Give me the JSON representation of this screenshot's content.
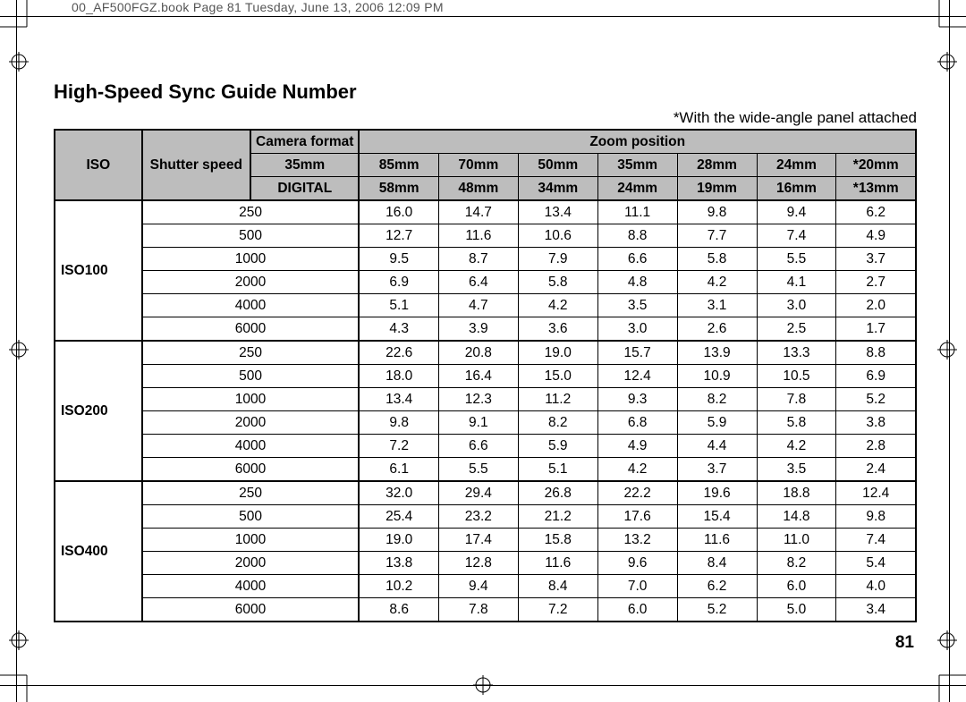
{
  "meta": {
    "book_header": "00_AF500FGZ.book  Page 81  Tuesday, June 13, 2006  12:09 PM",
    "page_number": "81"
  },
  "title": "High-Speed Sync Guide Number",
  "note": "*With the wide-angle panel attached",
  "table": {
    "headers": {
      "iso": "ISO",
      "shutter": "Shutter speed",
      "camera_format": "Camera format",
      "zoom": "Zoom position",
      "row35": {
        "label": "35mm",
        "cols": [
          "85mm",
          "70mm",
          "50mm",
          "35mm",
          "28mm",
          "24mm",
          "*20mm"
        ]
      },
      "rowDig": {
        "label": "DIGITAL",
        "cols": [
          "58mm",
          "48mm",
          "34mm",
          "24mm",
          "19mm",
          "16mm",
          "*13mm"
        ]
      }
    },
    "background_header": "#bdbdbd",
    "border_color": "#000000",
    "groups": [
      {
        "iso": "ISO100",
        "rows": [
          {
            "shutter": "250",
            "vals": [
              "16.0",
              "14.7",
              "13.4",
              "11.1",
              "9.8",
              "9.4",
              "6.2"
            ]
          },
          {
            "shutter": "500",
            "vals": [
              "12.7",
              "11.6",
              "10.6",
              "8.8",
              "7.7",
              "7.4",
              "4.9"
            ]
          },
          {
            "shutter": "1000",
            "vals": [
              "9.5",
              "8.7",
              "7.9",
              "6.6",
              "5.8",
              "5.5",
              "3.7"
            ]
          },
          {
            "shutter": "2000",
            "vals": [
              "6.9",
              "6.4",
              "5.8",
              "4.8",
              "4.2",
              "4.1",
              "2.7"
            ]
          },
          {
            "shutter": "4000",
            "vals": [
              "5.1",
              "4.7",
              "4.2",
              "3.5",
              "3.1",
              "3.0",
              "2.0"
            ]
          },
          {
            "shutter": "6000",
            "vals": [
              "4.3",
              "3.9",
              "3.6",
              "3.0",
              "2.6",
              "2.5",
              "1.7"
            ]
          }
        ]
      },
      {
        "iso": "ISO200",
        "rows": [
          {
            "shutter": "250",
            "vals": [
              "22.6",
              "20.8",
              "19.0",
              "15.7",
              "13.9",
              "13.3",
              "8.8"
            ]
          },
          {
            "shutter": "500",
            "vals": [
              "18.0",
              "16.4",
              "15.0",
              "12.4",
              "10.9",
              "10.5",
              "6.9"
            ]
          },
          {
            "shutter": "1000",
            "vals": [
              "13.4",
              "12.3",
              "11.2",
              "9.3",
              "8.2",
              "7.8",
              "5.2"
            ]
          },
          {
            "shutter": "2000",
            "vals": [
              "9.8",
              "9.1",
              "8.2",
              "6.8",
              "5.9",
              "5.8",
              "3.8"
            ]
          },
          {
            "shutter": "4000",
            "vals": [
              "7.2",
              "6.6",
              "5.9",
              "4.9",
              "4.4",
              "4.2",
              "2.8"
            ]
          },
          {
            "shutter": "6000",
            "vals": [
              "6.1",
              "5.5",
              "5.1",
              "4.2",
              "3.7",
              "3.5",
              "2.4"
            ]
          }
        ]
      },
      {
        "iso": "ISO400",
        "rows": [
          {
            "shutter": "250",
            "vals": [
              "32.0",
              "29.4",
              "26.8",
              "22.2",
              "19.6",
              "18.8",
              "12.4"
            ]
          },
          {
            "shutter": "500",
            "vals": [
              "25.4",
              "23.2",
              "21.2",
              "17.6",
              "15.4",
              "14.8",
              "9.8"
            ]
          },
          {
            "shutter": "1000",
            "vals": [
              "19.0",
              "17.4",
              "15.8",
              "13.2",
              "11.6",
              "11.0",
              "7.4"
            ]
          },
          {
            "shutter": "2000",
            "vals": [
              "13.8",
              "12.8",
              "11.6",
              "9.6",
              "8.4",
              "8.2",
              "5.4"
            ]
          },
          {
            "shutter": "4000",
            "vals": [
              "10.2",
              "9.4",
              "8.4",
              "7.0",
              "6.2",
              "6.0",
              "4.0"
            ]
          },
          {
            "shutter": "6000",
            "vals": [
              "8.6",
              "7.8",
              "7.2",
              "6.0",
              "5.2",
              "5.0",
              "3.4"
            ]
          }
        ]
      }
    ]
  }
}
